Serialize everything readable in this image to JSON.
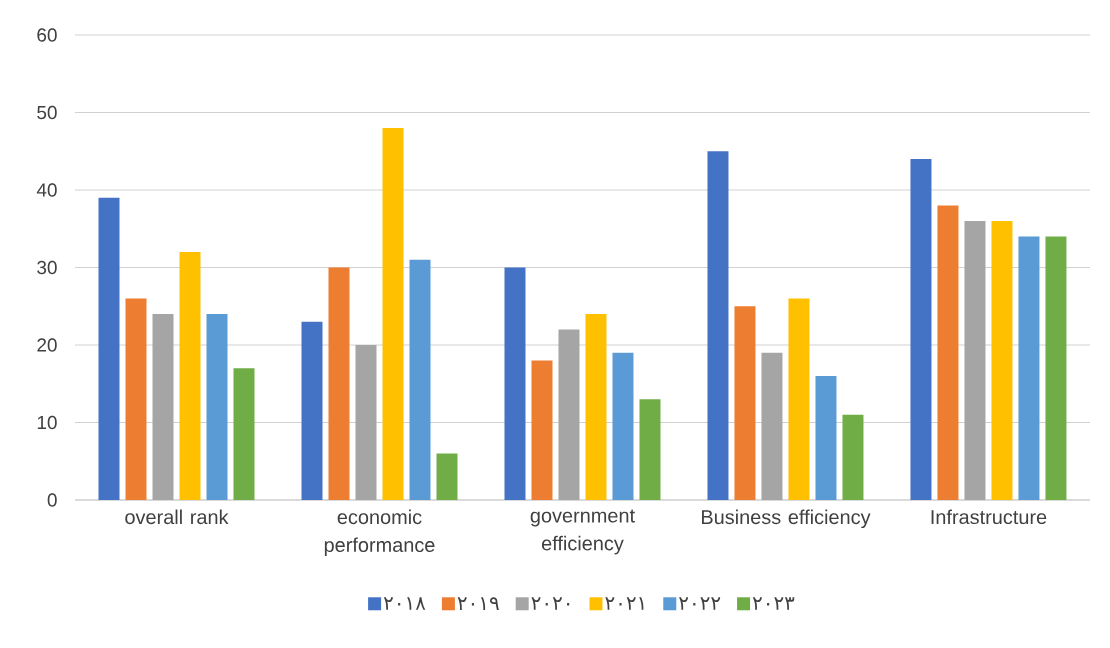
{
  "chart_data": {
    "type": "bar",
    "categories": [
      "overall rank",
      "economic performance",
      "government efficiency",
      "Business efficiency",
      "Infrastructure"
    ],
    "series": [
      {
        "name": "٢٠١٨",
        "color": "#4472c4",
        "values": [
          39,
          23,
          30,
          45,
          44
        ]
      },
      {
        "name": "٢٠١٩",
        "color": "#ed7d31",
        "values": [
          26,
          30,
          18,
          25,
          38
        ]
      },
      {
        "name": "٢٠٢٠",
        "color": "#a5a5a5",
        "values": [
          24,
          20,
          22,
          19,
          36
        ]
      },
      {
        "name": "٢٠٢١",
        "color": "#ffc000",
        "values": [
          32,
          48,
          24,
          26,
          36
        ]
      },
      {
        "name": "٢٠٢٢",
        "color": "#5b9bd5",
        "values": [
          24,
          31,
          19,
          16,
          34
        ]
      },
      {
        "name": "٢٠٢٣",
        "color": "#70ad47",
        "values": [
          17,
          6,
          13,
          11,
          34
        ]
      }
    ],
    "ylim": [
      0,
      60
    ],
    "yticks": [
      0,
      10,
      20,
      30,
      40,
      50,
      60
    ],
    "grid": "y",
    "legend": "bottom"
  }
}
